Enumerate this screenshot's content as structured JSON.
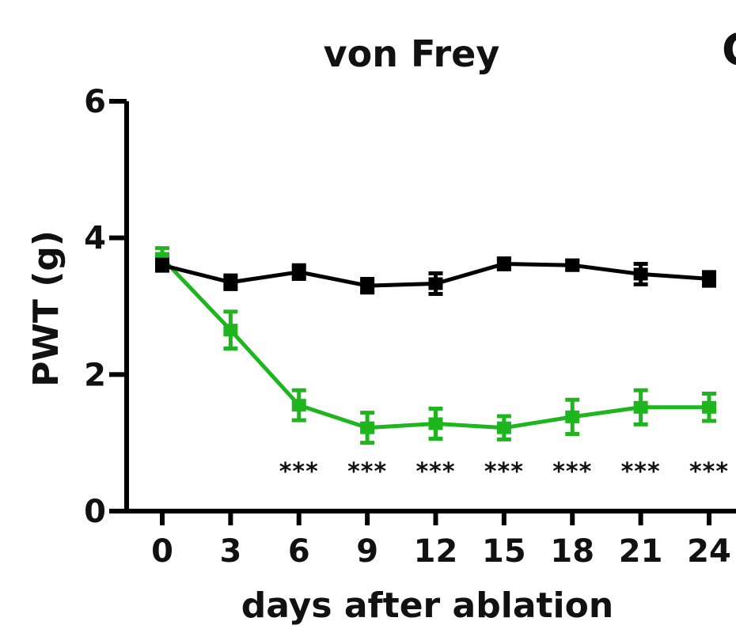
{
  "chart_data": {
    "type": "line",
    "title": "von Frey",
    "panel_letter": "C",
    "xlabel": "days after ablation",
    "ylabel": "PWT (g)",
    "x": [
      0,
      3,
      6,
      9,
      12,
      15,
      18,
      21,
      24
    ],
    "x_ticks": [
      "0",
      "3",
      "6",
      "9",
      "12",
      "15",
      "18",
      "21",
      "24"
    ],
    "y_ticks": [
      "0",
      "2",
      "4",
      "6"
    ],
    "xlim": [
      0,
      24
    ],
    "ylim": [
      0,
      6
    ],
    "grid": false,
    "series": [
      {
        "color": "#000000",
        "values": [
          3.6,
          3.35,
          3.5,
          3.3,
          3.33,
          3.62,
          3.6,
          3.47,
          3.4
        ],
        "errors": [
          0.08,
          0.1,
          0.1,
          0.1,
          0.15,
          0.08,
          0.07,
          0.15,
          0.1
        ]
      },
      {
        "color": "#1fb51f",
        "values": [
          3.7,
          2.65,
          1.55,
          1.22,
          1.28,
          1.22,
          1.38,
          1.52,
          1.52
        ],
        "errors": [
          0.15,
          0.27,
          0.22,
          0.22,
          0.22,
          0.17,
          0.25,
          0.25,
          0.2
        ]
      }
    ],
    "annotations": [
      {
        "x": 6,
        "text": "***"
      },
      {
        "x": 9,
        "text": "***"
      },
      {
        "x": 12,
        "text": "***"
      },
      {
        "x": 15,
        "text": "***"
      },
      {
        "x": 18,
        "text": "***"
      },
      {
        "x": 21,
        "text": "***"
      },
      {
        "x": 24,
        "text": "***"
      }
    ]
  }
}
